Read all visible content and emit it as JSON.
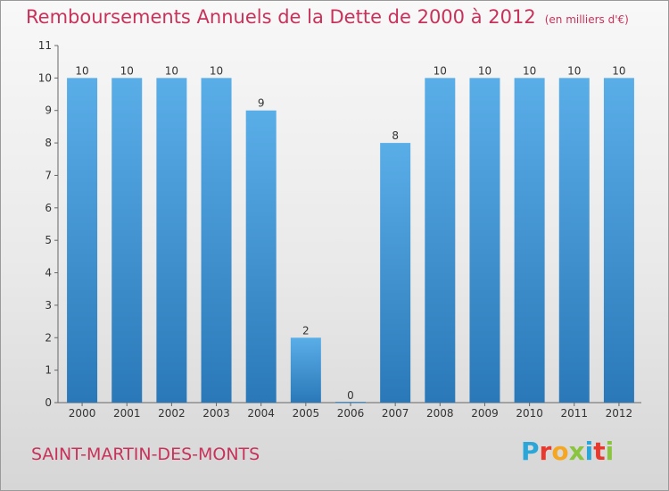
{
  "header": {
    "title": "Remboursements Annuels de la Dette de 2000 à 2012",
    "unit": "(en milliers d'€)"
  },
  "footer": {
    "city": "SAINT-MARTIN-DES-MONTS",
    "logo": {
      "text": "Proxiti",
      "letters": [
        {
          "char": "P",
          "color": "#2aa7d8"
        },
        {
          "char": "r",
          "color": "#e8392e"
        },
        {
          "char": "o",
          "color": "#f5a623"
        },
        {
          "char": "x",
          "color": "#8bc53f"
        },
        {
          "char": "i",
          "color": "#2aa7d8"
        },
        {
          "char": "t",
          "color": "#e8392e"
        },
        {
          "char": "i",
          "color": "#8bc53f"
        }
      ]
    }
  },
  "chart_data": {
    "type": "bar",
    "title": "Remboursements Annuels de la Dette de 2000 à 2012",
    "subtitle": "(en milliers d'€)",
    "categories": [
      "2000",
      "2001",
      "2002",
      "2003",
      "2004",
      "2005",
      "2006",
      "2007",
      "2008",
      "2009",
      "2010",
      "2011",
      "2012"
    ],
    "values": [
      10,
      10,
      10,
      10,
      9,
      2,
      0,
      8,
      10,
      10,
      10,
      10,
      10
    ],
    "data_labels": [
      "10",
      "10",
      "10",
      "10",
      "9",
      "2",
      "0",
      "8",
      "10",
      "10",
      "10",
      "10",
      "10"
    ],
    "yticks": [
      "0",
      "1",
      "2",
      "3",
      "4",
      "5",
      "6",
      "7",
      "8",
      "9",
      "10",
      "11"
    ],
    "ylim": [
      0,
      11
    ],
    "grid": false,
    "legend": "none",
    "colors": {
      "bar_top": "#5aaee8",
      "bar_bottom": "#2a78b8",
      "title": "#c8325a"
    }
  }
}
